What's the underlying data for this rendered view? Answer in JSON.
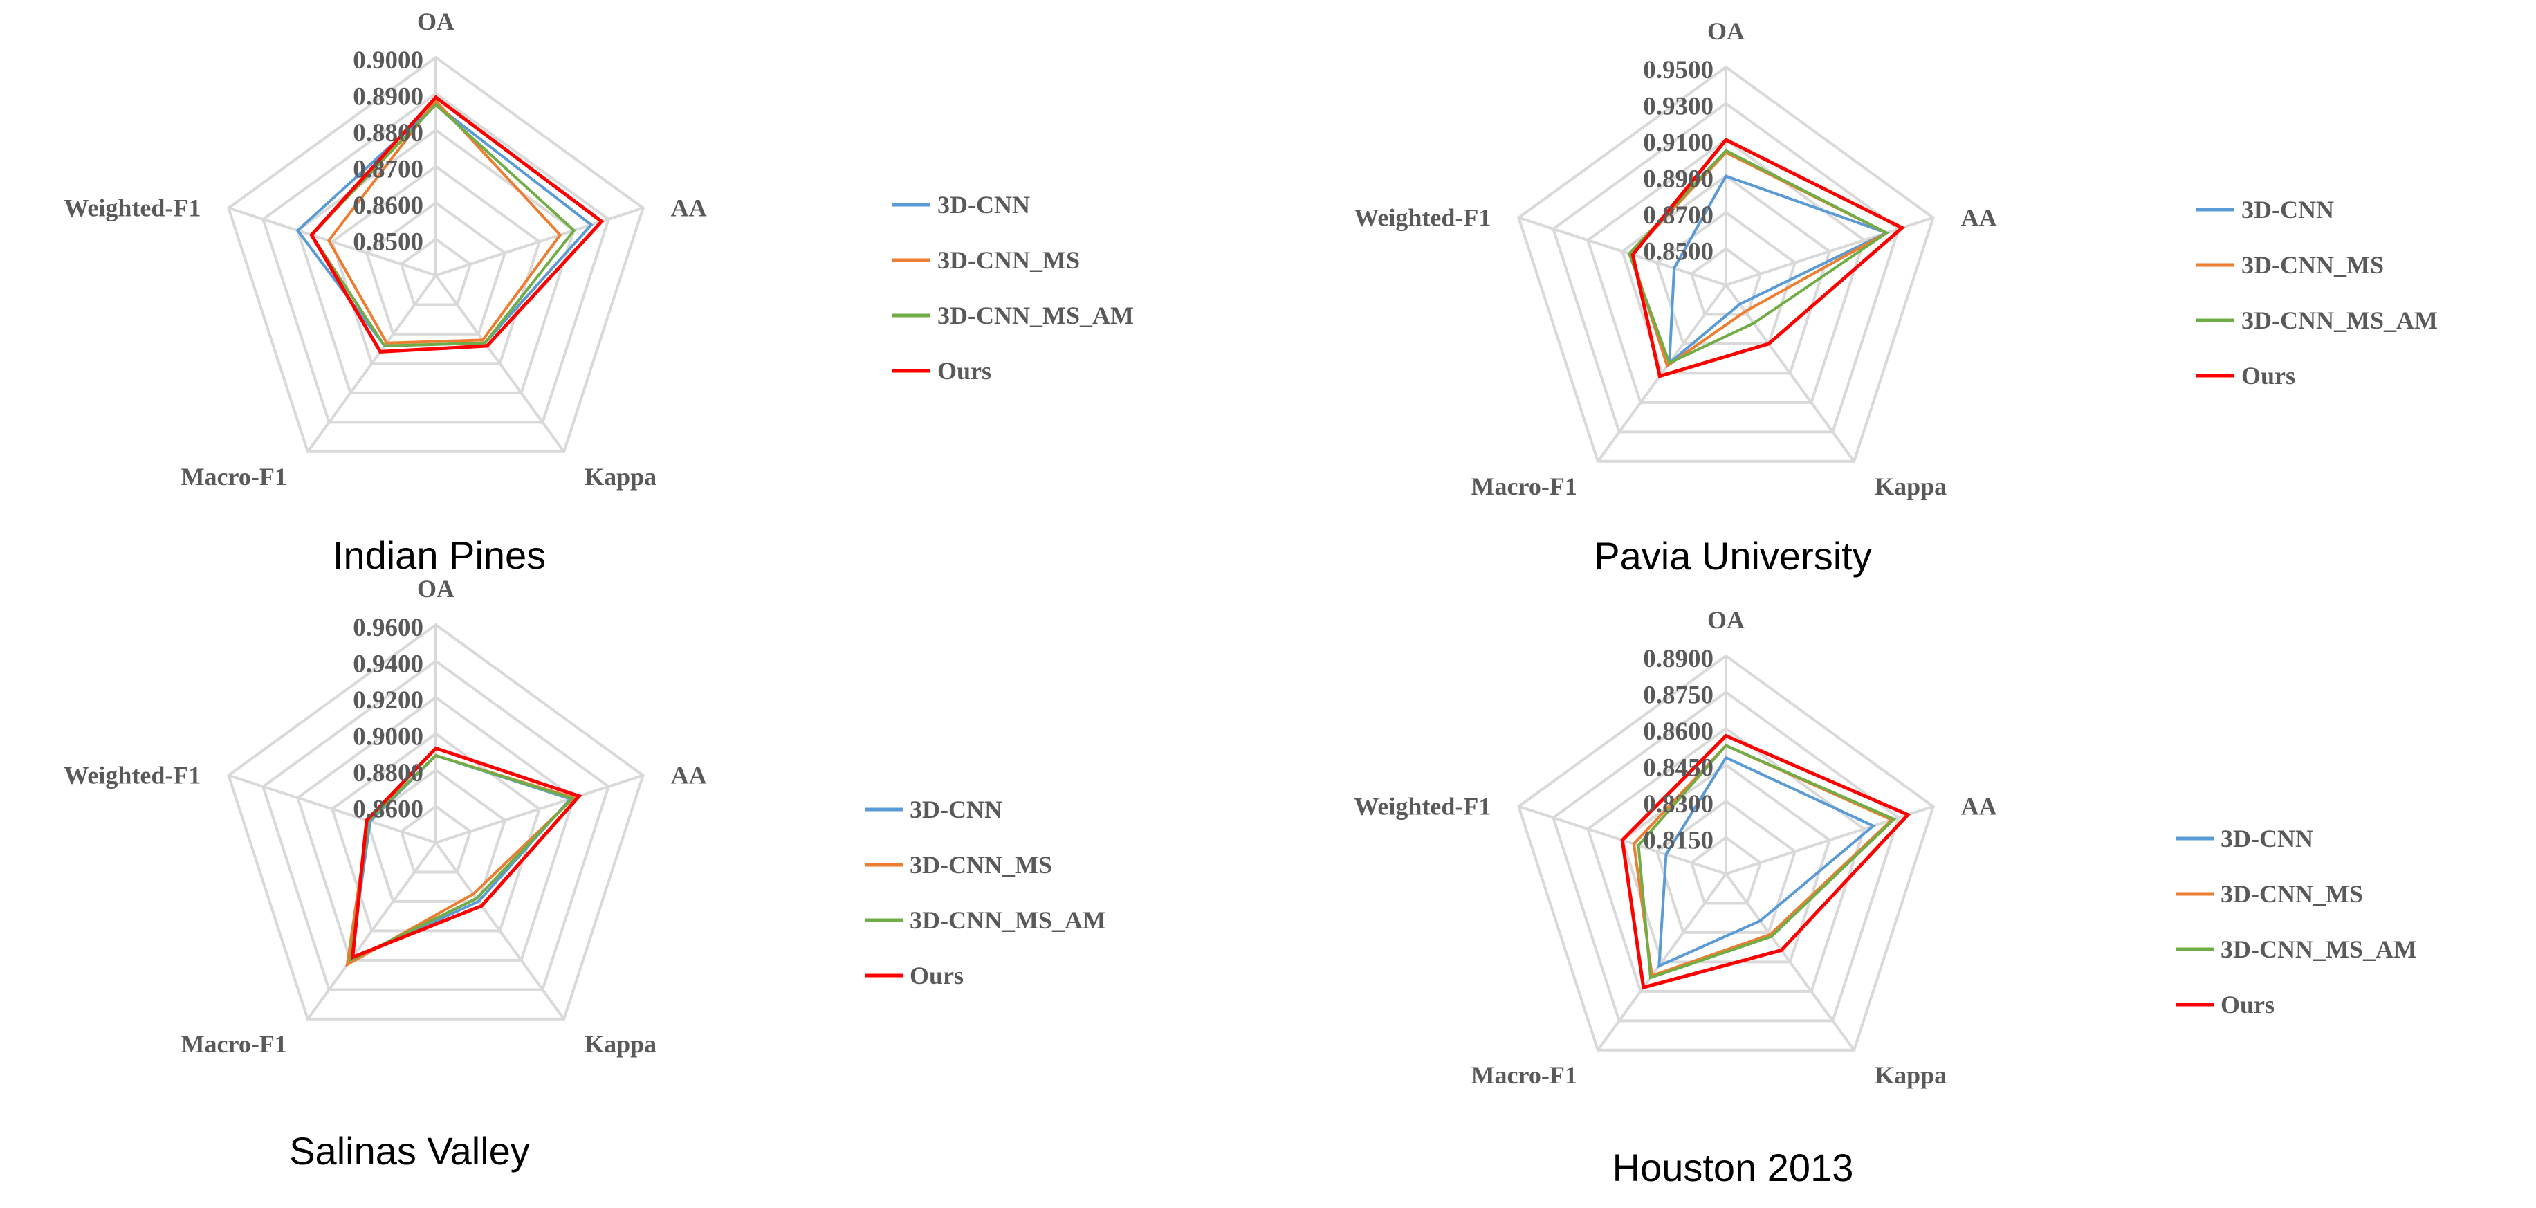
{
  "colors": {
    "grid": "#d9d9d9",
    "text": "#595959",
    "title": "#000000",
    "series": [
      "#5b9bd5",
      "#ed7d31",
      "#70ad47",
      "#ff0000"
    ]
  },
  "chart_data": [
    {
      "type": "radar",
      "title": "Indian Pines",
      "axes": [
        "OA",
        "AA",
        "Kappa",
        "Macro-F1",
        "Weighted-F1"
      ],
      "ticks": [
        "0.8500",
        "0.8600",
        "0.8700",
        "0.8800",
        "0.8900",
        "0.9000"
      ],
      "range": [
        0.84,
        0.9
      ],
      "legend": [
        "3D-CNN",
        "3D-CNN_MS",
        "3D-CNN_MS_AM",
        "Ours"
      ],
      "series": [
        {
          "name": "3D-CNN",
          "values": [
            0.887,
            0.885,
            0.863,
            0.864,
            0.88
          ]
        },
        {
          "name": "3D-CNN_MS",
          "values": [
            0.888,
            0.876,
            0.862,
            0.863,
            0.871
          ]
        },
        {
          "name": "3D-CNN_MS_AM",
          "values": [
            0.887,
            0.88,
            0.863,
            0.864,
            0.876
          ]
        },
        {
          "name": "Ours",
          "values": [
            0.889,
            0.888,
            0.864,
            0.866,
            0.876
          ]
        }
      ]
    },
    {
      "type": "radar",
      "title": "Pavia University",
      "axes": [
        "OA",
        "AA",
        "Kappa",
        "Macro-F1",
        "Weighted-F1"
      ],
      "ticks": [
        "0.8500",
        "0.8700",
        "0.8900",
        "0.9100",
        "0.9300",
        "0.9500"
      ],
      "range": [
        0.83,
        0.95
      ],
      "legend": [
        "3D-CNN",
        "3D-CNN_MS",
        "3D-CNN_MS_AM",
        "Ours"
      ],
      "series": [
        {
          "name": "3D-CNN",
          "values": [
            0.89,
            0.923,
            0.843,
            0.883,
            0.86
          ]
        },
        {
          "name": "3D-CNN_MS",
          "values": [
            0.903,
            0.923,
            0.848,
            0.885,
            0.885
          ]
        },
        {
          "name": "3D-CNN_MS_AM",
          "values": [
            0.904,
            0.923,
            0.856,
            0.883,
            0.886
          ]
        },
        {
          "name": "Ours",
          "values": [
            0.91,
            0.932,
            0.87,
            0.892,
            0.884
          ]
        }
      ]
    },
    {
      "type": "radar",
      "title": "Salinas Valley",
      "axes": [
        "OA",
        "AA",
        "Kappa",
        "Macro-F1",
        "Weighted-F1"
      ],
      "ticks": [
        "0.8600",
        "0.8800",
        "0.9000",
        "0.9200",
        "0.9400",
        "0.9600"
      ],
      "range": [
        0.84,
        0.96
      ],
      "legend": [
        "3D-CNN",
        "3D-CNN_MS",
        "3D-CNN_MS_AM",
        "Ours"
      ],
      "series": [
        {
          "name": "3D-CNN",
          "values": [
            0.888,
            0.918,
            0.88,
            0.92,
            0.878
          ]
        },
        {
          "name": "3D-CNN_MS",
          "values": [
            0.888,
            0.92,
            0.875,
            0.923,
            0.879
          ]
        },
        {
          "name": "3D-CNN_MS_AM",
          "values": [
            0.888,
            0.919,
            0.878,
            0.92,
            0.879
          ]
        },
        {
          "name": "Ours",
          "values": [
            0.892,
            0.923,
            0.883,
            0.918,
            0.88
          ]
        }
      ]
    },
    {
      "type": "radar",
      "title": "Houston 2013",
      "axes": [
        "OA",
        "AA",
        "Kappa",
        "Macro-F1",
        "Weighted-F1"
      ],
      "ticks": [
        "0.8150",
        "0.8300",
        "0.8450",
        "0.8600",
        "0.8750",
        "0.8900"
      ],
      "range": [
        0.8,
        0.89
      ],
      "legend": [
        "3D-CNN",
        "3D-CNN_MS",
        "3D-CNN_MS_AM",
        "Ours"
      ],
      "series": [
        {
          "name": "3D-CNN",
          "values": [
            0.848,
            0.864,
            0.824,
            0.847,
            0.826
          ]
        },
        {
          "name": "3D-CNN_MS",
          "values": [
            0.853,
            0.872,
            0.831,
            0.852,
            0.84
          ]
        },
        {
          "name": "3D-CNN_MS_AM",
          "values": [
            0.853,
            0.873,
            0.832,
            0.853,
            0.838
          ]
        },
        {
          "name": "Ours",
          "values": [
            0.857,
            0.879,
            0.839,
            0.858,
            0.845
          ]
        }
      ]
    }
  ]
}
